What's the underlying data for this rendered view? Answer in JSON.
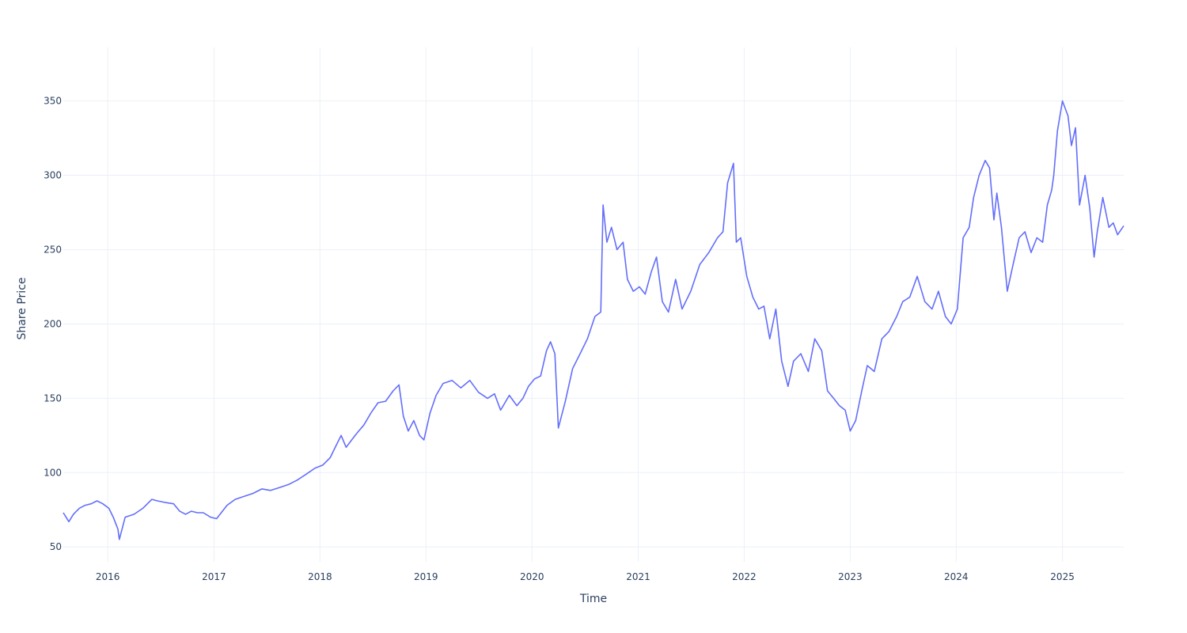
{
  "chart_data": {
    "type": "line",
    "title": "",
    "xlabel": "Time",
    "ylabel": "Share Price",
    "x_tick_labels": [
      "2016",
      "2017",
      "2018",
      "2019",
      "2020",
      "2021",
      "2022",
      "2023",
      "2024",
      "2025"
    ],
    "y_tick_labels": [
      "50",
      "100",
      "150",
      "200",
      "250",
      "300",
      "350"
    ],
    "y_ticks": [
      50,
      100,
      150,
      200,
      250,
      300,
      350
    ],
    "xlim": [
      "2015-08-01",
      "2025-07-31"
    ],
    "ylim": [
      40,
      386
    ],
    "grid": true,
    "legend": "none",
    "colors": {
      "line": "#636efa",
      "grid": "#ebf0f8",
      "text": "#2a3f5f",
      "background": "#ffffff"
    },
    "series": [
      {
        "x": [
          "2015-08-01",
          "2015-08-20",
          "2015-09-05",
          "2015-09-25",
          "2015-10-15",
          "2015-11-05",
          "2015-11-25",
          "2015-12-15",
          "2016-01-05",
          "2016-01-20",
          "2016-02-05",
          "2016-02-10",
          "2016-03-01",
          "2016-04-01",
          "2016-05-01",
          "2016-06-01",
          "2016-06-20",
          "2016-07-15",
          "2016-08-15",
          "2016-09-05",
          "2016-09-25",
          "2016-10-15",
          "2016-11-05",
          "2016-11-25",
          "2016-12-20",
          "2017-01-10",
          "2017-02-15",
          "2017-03-15",
          "2017-04-15",
          "2017-05-15",
          "2017-06-15",
          "2017-07-15",
          "2017-08-15",
          "2017-09-15",
          "2017-10-15",
          "2017-11-15",
          "2017-12-15",
          "2018-01-10",
          "2018-02-05",
          "2018-02-25",
          "2018-03-15",
          "2018-04-01",
          "2018-04-20",
          "2018-05-10",
          "2018-06-01",
          "2018-06-25",
          "2018-07-20",
          "2018-08-15",
          "2018-09-10",
          "2018-09-30",
          "2018-10-15",
          "2018-11-01",
          "2018-11-20",
          "2018-12-10",
          "2018-12-25",
          "2019-01-15",
          "2019-02-05",
          "2019-03-01",
          "2019-04-01",
          "2019-05-01",
          "2019-06-01",
          "2019-07-01",
          "2019-08-01",
          "2019-08-25",
          "2019-09-15",
          "2019-10-15",
          "2019-11-10",
          "2019-12-01",
          "2019-12-20",
          "2020-01-10",
          "2020-01-31",
          "2020-02-20",
          "2020-03-05",
          "2020-03-20",
          "2020-04-01",
          "2020-04-25",
          "2020-05-20",
          "2020-06-15",
          "2020-07-10",
          "2020-08-05",
          "2020-08-25",
          "2020-09-02",
          "2020-09-15",
          "2020-10-01",
          "2020-10-20",
          "2020-11-10",
          "2020-11-25",
          "2020-12-15",
          "2021-01-05",
          "2021-01-25",
          "2021-02-15",
          "2021-03-05",
          "2021-03-25",
          "2021-04-15",
          "2021-05-10",
          "2021-06-01",
          "2021-07-01",
          "2021-08-01",
          "2021-09-01",
          "2021-10-01",
          "2021-10-20",
          "2021-11-05",
          "2021-11-25",
          "2021-12-05",
          "2021-12-20",
          "2022-01-10",
          "2022-01-31",
          "2022-02-20",
          "2022-03-10",
          "2022-03-30",
          "2022-04-20",
          "2022-05-10",
          "2022-06-01",
          "2022-06-20",
          "2022-07-15",
          "2022-08-10",
          "2022-09-01",
          "2022-09-25",
          "2022-10-15",
          "2022-11-05",
          "2022-11-25",
          "2022-12-15",
          "2023-01-01",
          "2023-01-20",
          "2023-02-10",
          "2023-03-01",
          "2023-03-25",
          "2023-04-20",
          "2023-05-15",
          "2023-06-10",
          "2023-07-01",
          "2023-07-25",
          "2023-08-20",
          "2023-09-15",
          "2023-10-10",
          "2023-11-01",
          "2023-11-25",
          "2023-12-15",
          "2024-01-05",
          "2024-01-25",
          "2024-02-15",
          "2024-03-01",
          "2024-03-20",
          "2024-04-10",
          "2024-04-25",
          "2024-05-10",
          "2024-05-20",
          "2024-06-05",
          "2024-06-25",
          "2024-07-15",
          "2024-08-05",
          "2024-08-25",
          "2024-09-15",
          "2024-10-05",
          "2024-10-25",
          "2024-11-10",
          "2024-11-25",
          "2024-12-02",
          "2024-12-15",
          "2025-01-01",
          "2025-01-20",
          "2025-02-01",
          "2025-02-15",
          "2025-03-01",
          "2025-03-20",
          "2025-04-05",
          "2025-04-20",
          "2025-05-01",
          "2025-05-20",
          "2025-06-10",
          "2025-06-25",
          "2025-07-10",
          "2025-07-31"
        ],
        "y": [
          73,
          67,
          72,
          76,
          78,
          79,
          81,
          79,
          76,
          70,
          62,
          55,
          70,
          72,
          76,
          82,
          81,
          80,
          79,
          74,
          72,
          74,
          73,
          73,
          70,
          69,
          78,
          82,
          84,
          86,
          89,
          88,
          90,
          92,
          95,
          99,
          103,
          105,
          110,
          118,
          125,
          117,
          122,
          127,
          132,
          140,
          147,
          148,
          155,
          159,
          138,
          128,
          135,
          125,
          122,
          140,
          152,
          160,
          162,
          157,
          162,
          154,
          150,
          153,
          142,
          152,
          145,
          150,
          158,
          163,
          165,
          182,
          188,
          180,
          130,
          148,
          170,
          180,
          190,
          205,
          208,
          280,
          255,
          265,
          250,
          255,
          230,
          222,
          225,
          220,
          235,
          245,
          215,
          208,
          230,
          210,
          222,
          240,
          248,
          258,
          262,
          295,
          308,
          255,
          258,
          232,
          218,
          210,
          212,
          190,
          210,
          175,
          158,
          175,
          180,
          168,
          190,
          182,
          155,
          150,
          145,
          142,
          128,
          135,
          155,
          172,
          168,
          190,
          195,
          205,
          215,
          218,
          232,
          215,
          210,
          222,
          205,
          200,
          210,
          258,
          265,
          285,
          300,
          310,
          305,
          270,
          288,
          265,
          222,
          240,
          258,
          262,
          248,
          258,
          255,
          280,
          290,
          300,
          330,
          350,
          340,
          320,
          332,
          280,
          300,
          278,
          245,
          262,
          285,
          265,
          268,
          260,
          266
        ]
      }
    ]
  }
}
